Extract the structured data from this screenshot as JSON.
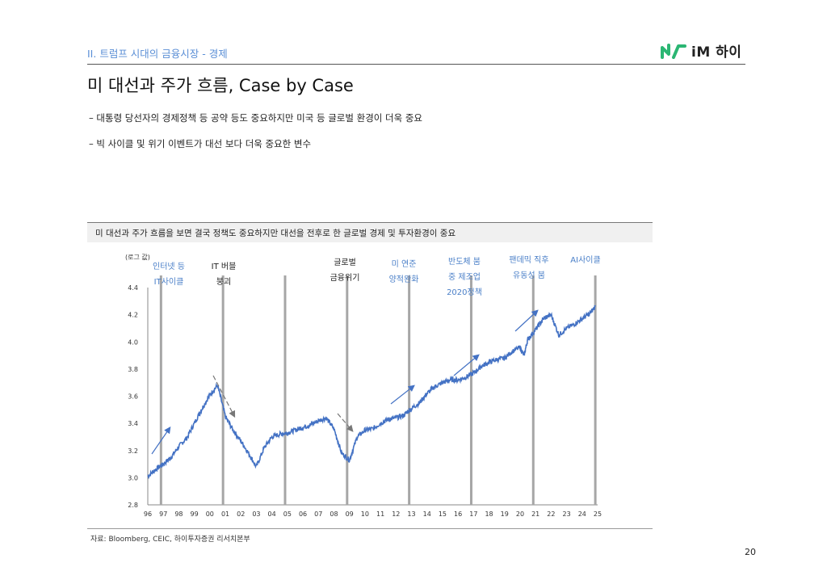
{
  "header": {
    "section_title": "II. 트럼프 시대의 금융시장 - 경제",
    "logo_text": "iM 하이",
    "page_title": "미 대선과 주가 흐름, Case by Case"
  },
  "bullets": [
    "–  대통령 당선자의 경제정책 등 공약 등도 중요하지만 미국 등 글로벌 환경이 더욱 중요",
    "–  빅 사이클 및 위기 이벤트가 대선 보다 더욱 중요한 변수"
  ],
  "chart_header": "미 대선과 주가 흐름을 보면 결국 정책도 중요하지만 대선을 전후로 한 글로벌 경제 및 투자환경이 중요",
  "source": "자료: Bloomberg, CEIC, 하이투자증권 리서치본부",
  "page_number": "20",
  "colors": {
    "line": "#4472c4",
    "event_bar": "#a6a6a6",
    "accent": "#5b8fd6",
    "logo_green": "#2bb673"
  },
  "chart_data": {
    "type": "line",
    "ylabel": "(로그 값)",
    "ylim": [
      2.8,
      4.4
    ],
    "yticks": [
      "2.8",
      "3.0",
      "3.2",
      "3.4",
      "3.6",
      "3.8",
      "4.0",
      "4.2",
      "4.4"
    ],
    "xticks": [
      "96",
      "97",
      "98",
      "99",
      "00",
      "01",
      "02",
      "03",
      "04",
      "05",
      "06",
      "07",
      "08",
      "09",
      "10",
      "11",
      "12",
      "13",
      "14",
      "15",
      "16",
      "17",
      "18",
      "19",
      "20",
      "21",
      "22",
      "23",
      "24",
      "25"
    ],
    "x_years": [
      1996.0,
      1996.5,
      1997.0,
      1997.5,
      1998.0,
      1998.5,
      1999.0,
      1999.5,
      2000.0,
      2000.5,
      2001.0,
      2001.5,
      2002.0,
      2002.5,
      2003.0,
      2003.5,
      2004.0,
      2004.5,
      2005.0,
      2005.5,
      2006.0,
      2006.5,
      2007.0,
      2007.5,
      2008.0,
      2008.5,
      2009.0,
      2009.5,
      2010.0,
      2010.5,
      2011.0,
      2011.5,
      2012.0,
      2012.5,
      2013.0,
      2013.5,
      2014.0,
      2014.5,
      2015.0,
      2015.5,
      2016.0,
      2016.5,
      2017.0,
      2017.5,
      2018.0,
      2018.5,
      2019.0,
      2019.5,
      2020.0,
      2020.25,
      2020.5,
      2021.0,
      2021.5,
      2022.0,
      2022.5,
      2023.0,
      2023.5,
      2024.0,
      2024.5,
      2024.85
    ],
    "values": [
      3.01,
      3.06,
      3.1,
      3.15,
      3.23,
      3.29,
      3.4,
      3.51,
      3.61,
      3.68,
      3.45,
      3.35,
      3.27,
      3.18,
      3.08,
      3.22,
      3.3,
      3.32,
      3.33,
      3.35,
      3.37,
      3.39,
      3.42,
      3.44,
      3.36,
      3.18,
      3.13,
      3.3,
      3.35,
      3.36,
      3.4,
      3.43,
      3.44,
      3.46,
      3.51,
      3.55,
      3.62,
      3.67,
      3.7,
      3.72,
      3.72,
      3.74,
      3.77,
      3.82,
      3.85,
      3.87,
      3.88,
      3.93,
      3.96,
      3.9,
      4.02,
      4.09,
      4.17,
      4.2,
      4.05,
      4.1,
      4.13,
      4.17,
      4.21,
      4.26
    ],
    "events": [
      1996.85,
      2000.85,
      2004.85,
      2008.85,
      2012.85,
      2016.85,
      2020.85,
      2024.85
    ],
    "annotations": [
      {
        "lines": [
          "인터넷 등",
          "IT사이클"
        ],
        "color": "blue"
      },
      {
        "lines": [
          "IT 버블",
          "붕괴"
        ],
        "color": "dark"
      },
      {
        "lines": [
          "글로벌",
          "금융위기"
        ],
        "color": "dark"
      },
      {
        "lines": [
          "미 연준",
          "양적완화"
        ],
        "color": "blue"
      },
      {
        "lines": [
          "반도체 붐",
          "중 제조업",
          "2020정책"
        ],
        "color": "blue"
      },
      {
        "lines": [
          "팬데믹 직후",
          "유동성 붐"
        ],
        "color": "blue"
      },
      {
        "lines": [
          "AI사이클"
        ],
        "color": "blue"
      }
    ]
  }
}
